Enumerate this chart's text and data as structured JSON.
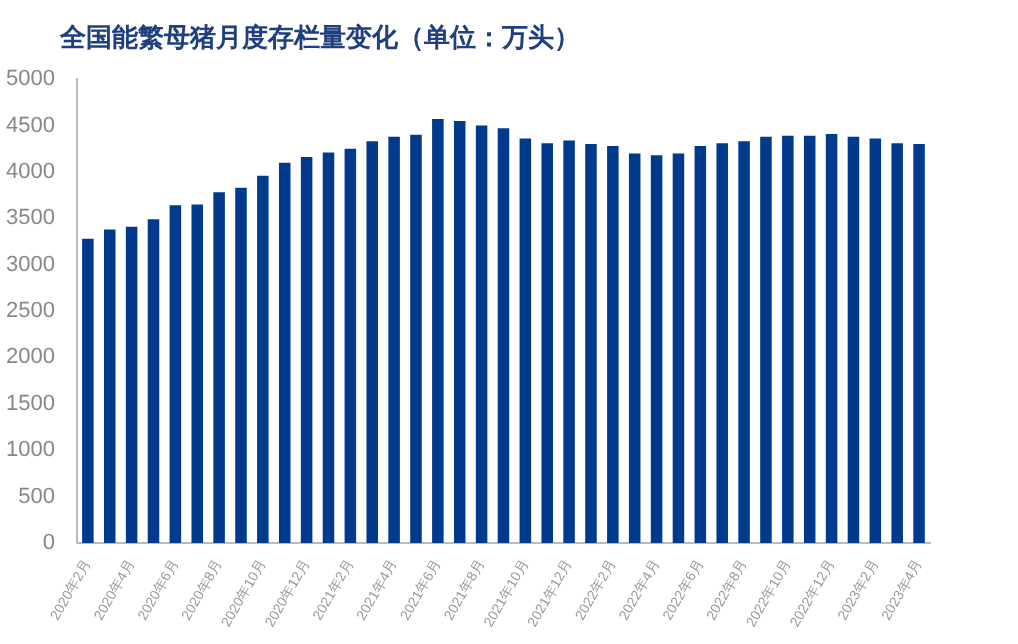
{
  "chart_data": {
    "type": "bar",
    "title": "全国能繁母猪月度存栏量变化（单位：万头）",
    "categories": [
      "2020年2月",
      null,
      "2020年4月",
      null,
      "2020年6月",
      null,
      "2020年8月",
      null,
      "2020年10月",
      null,
      "2020年12月",
      null,
      "2021年2月",
      null,
      "2021年4月",
      null,
      "2021年6月",
      null,
      "2021年8月",
      null,
      "2021年10月",
      null,
      "2021年12月",
      null,
      "2022年2月",
      null,
      "2022年4月",
      null,
      "2022年6月",
      null,
      "2022年8月",
      null,
      "2022年10月",
      null,
      "2022年12月",
      null,
      "2023年2月",
      null,
      "2023年4月"
    ],
    "values": [
      3280,
      3380,
      3410,
      3490,
      3640,
      3650,
      3780,
      3830,
      3960,
      4100,
      4160,
      4210,
      4250,
      4330,
      4380,
      4400,
      4570,
      4550,
      4500,
      4470,
      4360,
      4310,
      4340,
      4300,
      4280,
      4200,
      4180,
      4200,
      4280,
      4310,
      4330,
      4380,
      4390,
      4390,
      4410,
      4380,
      4360,
      4310,
      4300
    ],
    "color": "#003a8c",
    "ylim": [
      0,
      5000
    ],
    "yticks": [
      0,
      500,
      1000,
      1500,
      2000,
      2500,
      3000,
      3500,
      4000,
      4500,
      5000
    ],
    "grid": false,
    "legend": false
  }
}
